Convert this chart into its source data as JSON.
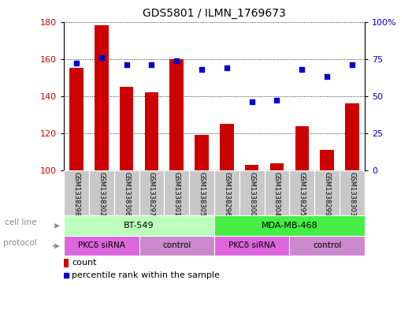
{
  "title": "GDS5801 / ILMN_1769673",
  "samples": [
    "GSM1338298",
    "GSM1338302",
    "GSM1338306",
    "GSM1338297",
    "GSM1338301",
    "GSM1338305",
    "GSM1338296",
    "GSM1338300",
    "GSM1338304",
    "GSM1338295",
    "GSM1338299",
    "GSM1338303"
  ],
  "counts": [
    155,
    178,
    145,
    142,
    160,
    119,
    125,
    103,
    104,
    124,
    111,
    136
  ],
  "percentiles": [
    72,
    76,
    71,
    71,
    74,
    68,
    69,
    46,
    47,
    68,
    63,
    71
  ],
  "ylim_left": [
    100,
    180
  ],
  "ylim_right": [
    0,
    100
  ],
  "yticks_left": [
    100,
    120,
    140,
    160,
    180
  ],
  "yticks_right": [
    0,
    25,
    50,
    75,
    100
  ],
  "yticklabels_right": [
    "0",
    "25",
    "50",
    "75",
    "100%"
  ],
  "bar_color": "#cc0000",
  "scatter_color": "#0000cc",
  "cell_line_labels": [
    "BT-549",
    "MDA-MB-468"
  ],
  "cell_line_ranges": [
    [
      0,
      6
    ],
    [
      6,
      12
    ]
  ],
  "cell_line_colors": [
    "#bbffbb",
    "#44ee44"
  ],
  "protocol_labels": [
    "PKCδ siRNA",
    "control",
    "PKCδ siRNA",
    "control"
  ],
  "protocol_ranges": [
    [
      0,
      3
    ],
    [
      3,
      6
    ],
    [
      6,
      9
    ],
    [
      9,
      12
    ]
  ],
  "protocol_colors": [
    "#ee66ee",
    "#ee88ee",
    "#ee66ee",
    "#ee88ee"
  ],
  "sample_bg_color": "#c8c8c8",
  "legend_count_color": "#cc0000",
  "legend_percentile_color": "#0000cc",
  "left_label_color": "#888888"
}
